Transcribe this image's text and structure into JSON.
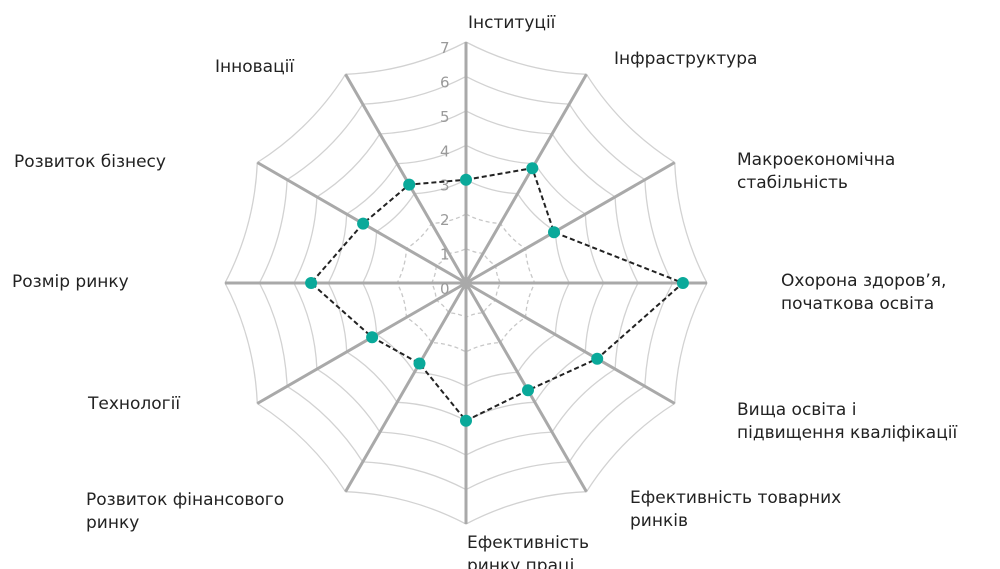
{
  "chart_data": {
    "type": "radar",
    "title": "",
    "rlim": [
      0,
      7
    ],
    "ticks": [
      "0",
      "1",
      "2",
      "3",
      "4",
      "5",
      "6",
      "7"
    ],
    "categories": [
      [
        "Інституції"
      ],
      [
        "Інфраструктура"
      ],
      [
        "Макроекономічна",
        "стабільність"
      ],
      [
        "Охорона здоров’я,",
        "початкова освіта"
      ],
      [
        "Вища освіта і",
        "підвищення кваліфікації"
      ],
      [
        "Ефективність товарних",
        "ринків"
      ],
      [
        "Ефективність",
        "ринку праці"
      ],
      [
        "Розвиток фінансового",
        "ринку"
      ],
      [
        "Технології"
      ],
      [
        "Розмір ринку"
      ],
      [
        "Розвиток бізнесу"
      ],
      [
        "Інновації"
      ]
    ],
    "series": [
      {
        "values": [
          3.0,
          3.85,
          2.95,
          6.3,
          4.4,
          3.6,
          4.0,
          2.7,
          3.15,
          4.5,
          3.45,
          3.3
        ]
      }
    ],
    "grid": true,
    "colors": {
      "marker": "#0aa99a",
      "line": "#222222",
      "spoke": "#a9a9a9",
      "web": "#d2d2d2",
      "inner_web": "#c8c8c8"
    }
  }
}
